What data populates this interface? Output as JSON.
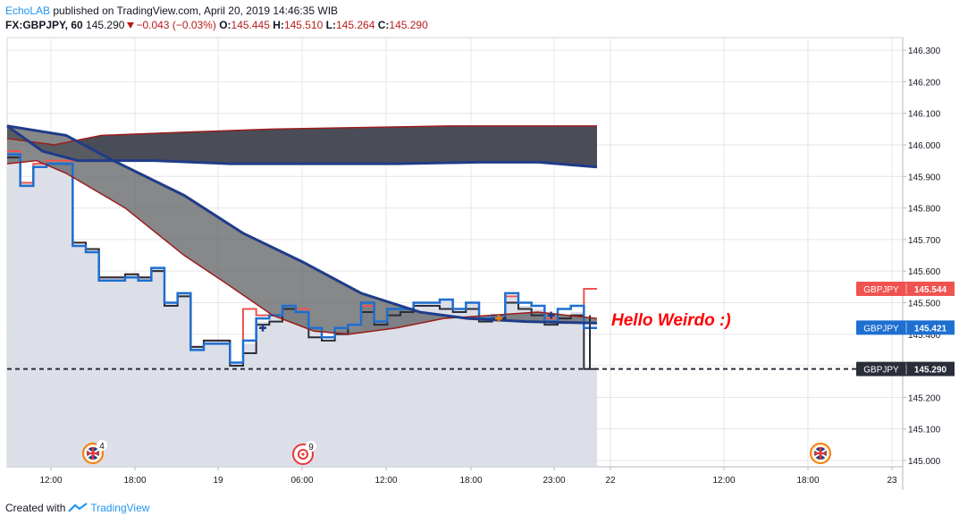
{
  "header": {
    "author": "EchoLAB",
    "published_text": " published on TradingView.com, April 20, 2019 14:46:35 WIB",
    "symbol": "FX:GBPJPY, 60",
    "price": "145.290",
    "change": "−0.043 (−0.03%)",
    "o_label": "O:",
    "o_value": "145.445",
    "h_label": "H:",
    "h_value": "145.510",
    "l_label": "L:",
    "l_value": "145.264",
    "c_label": "C:",
    "c_value": "145.290"
  },
  "footer": {
    "created_with": "Created with",
    "brand": "TradingView"
  },
  "colors": {
    "grid": "#e6e6e6",
    "area": "#d8dbe4",
    "blue": "#1e6fd0",
    "red": "#ef5350",
    "dark": "#2a2e39",
    "cloud_top": "#2a2e39",
    "cloud_mid": "#5e6063",
    "navy": "#1f3c88",
    "darkred": "#9b1c1c"
  },
  "icons": {
    "uk_flag": "uk-flag-icon",
    "chevron": "down-arrow-icon",
    "target": "target-icon"
  },
  "chart_data": {
    "type": "line",
    "ylim": [
      144.98,
      146.34
    ],
    "y_ticks": [
      "146.300",
      "146.200",
      "146.100",
      "146.000",
      "145.900",
      "145.800",
      "145.700",
      "145.600",
      "145.500",
      "145.400",
      "145.300",
      "145.200",
      "145.100",
      "145.000"
    ],
    "x_ticks": [
      "12:00",
      "18:00",
      "19",
      "06:00",
      "12:00",
      "18:00",
      "23:00",
      "22",
      "12:00",
      "18:00",
      "23"
    ],
    "price_labels": [
      {
        "name": "GBPJPY",
        "value": "145.544",
        "color": "#ef5350"
      },
      {
        "name": "GBPJPY",
        "value": "145.421",
        "color": "#1e6fd0"
      },
      {
        "name": "GBPJPY",
        "value": "145.290",
        "color": "#2a2e39"
      }
    ],
    "annotation": "Hello Weirdo :)",
    "event_badges": [
      "4",
      "9"
    ],
    "last_price": 145.29,
    "area_close": [
      145.97,
      145.88,
      145.94,
      145.94,
      145.94,
      145.68,
      145.67,
      145.58,
      145.58,
      145.59,
      145.58,
      145.61,
      145.5,
      145.53,
      145.36,
      145.38,
      145.38,
      145.31,
      145.37,
      145.44,
      145.46,
      145.49,
      145.47,
      145.42,
      145.38,
      145.41,
      145.41,
      145.5,
      145.43,
      145.48,
      145.48,
      145.5,
      145.5,
      145.51,
      145.48,
      145.5,
      145.44,
      145.46,
      145.52,
      145.49,
      145.48,
      145.43,
      145.46,
      145.47,
      145.29
    ],
    "series_blue": [
      145.97,
      145.87,
      145.93,
      145.94,
      145.94,
      145.68,
      145.66,
      145.57,
      145.57,
      145.58,
      145.57,
      145.61,
      145.5,
      145.53,
      145.35,
      145.37,
      145.37,
      145.31,
      145.38,
      145.45,
      145.46,
      145.49,
      145.47,
      145.42,
      145.39,
      145.42,
      145.43,
      145.5,
      145.44,
      145.48,
      145.48,
      145.5,
      145.5,
      145.51,
      145.48,
      145.5,
      145.45,
      145.46,
      145.53,
      145.5,
      145.49,
      145.44,
      145.48,
      145.49,
      145.42
    ],
    "series_dark": [
      145.96,
      145.87,
      145.93,
      145.94,
      145.94,
      145.69,
      145.67,
      145.58,
      145.58,
      145.59,
      145.58,
      145.6,
      145.49,
      145.52,
      145.36,
      145.38,
      145.38,
      145.3,
      145.34,
      145.43,
      145.44,
      145.48,
      145.47,
      145.39,
      145.38,
      145.4,
      145.43,
      145.47,
      145.43,
      145.46,
      145.47,
      145.49,
      145.49,
      145.48,
      145.47,
      145.48,
      145.44,
      145.45,
      145.5,
      145.48,
      145.46,
      145.43,
      145.45,
      145.46,
      145.29
    ],
    "series_red": [
      145.98,
      145.88,
      145.94,
      145.95,
      145.95,
      145.69,
      145.67,
      145.58,
      145.58,
      145.59,
      145.58,
      145.6,
      145.5,
      145.53,
      145.36,
      145.38,
      145.38,
      145.31,
      145.48,
      145.46,
      145.46,
      145.49,
      145.48,
      145.42,
      145.39,
      145.42,
      145.43,
      145.49,
      145.44,
      145.48,
      145.48,
      145.5,
      145.5,
      145.51,
      145.48,
      145.5,
      145.45,
      145.46,
      145.52,
      145.5,
      145.49,
      145.45,
      145.48,
      145.49,
      145.544
    ],
    "ma_slow_red": [
      [
        0,
        146.02
      ],
      [
        0.08,
        146.0
      ],
      [
        0.16,
        146.03
      ],
      [
        0.3,
        146.04
      ],
      [
        0.45,
        146.05
      ],
      [
        0.6,
        146.055
      ],
      [
        0.75,
        146.06
      ],
      [
        0.9,
        146.06
      ],
      [
        1,
        146.06
      ]
    ],
    "ma_slow_navy": [
      [
        0,
        146.06
      ],
      [
        0.06,
        145.98
      ],
      [
        0.12,
        145.95
      ],
      [
        0.25,
        145.95
      ],
      [
        0.38,
        145.94
      ],
      [
        0.52,
        145.94
      ],
      [
        0.66,
        145.94
      ],
      [
        0.8,
        145.945
      ],
      [
        0.9,
        145.945
      ],
      [
        1,
        145.93
      ]
    ],
    "ma_fast_navy": [
      [
        0,
        146.06
      ],
      [
        0.1,
        146.03
      ],
      [
        0.18,
        145.95
      ],
      [
        0.3,
        145.84
      ],
      [
        0.4,
        145.72
      ],
      [
        0.5,
        145.63
      ],
      [
        0.6,
        145.53
      ],
      [
        0.7,
        145.47
      ],
      [
        0.78,
        145.45
      ],
      [
        0.88,
        145.44
      ],
      [
        1,
        145.435
      ]
    ],
    "ma_fast_red": [
      [
        0,
        145.94
      ],
      [
        0.05,
        145.95
      ],
      [
        0.1,
        145.91
      ],
      [
        0.2,
        145.8
      ],
      [
        0.3,
        145.65
      ],
      [
        0.38,
        145.55
      ],
      [
        0.45,
        145.46
      ],
      [
        0.52,
        145.41
      ],
      [
        0.58,
        145.4
      ],
      [
        0.66,
        145.42
      ],
      [
        0.74,
        145.45
      ],
      [
        0.82,
        145.46
      ],
      [
        0.9,
        145.47
      ],
      [
        1,
        145.45
      ]
    ],
    "markers": [
      {
        "index": 19,
        "value": 145.42,
        "color": "#1e3a8a"
      },
      {
        "index": 37,
        "value": 145.45,
        "color": "#f57c00"
      },
      {
        "index": 41,
        "value": 145.46,
        "color": "#1e3a8a"
      }
    ]
  }
}
